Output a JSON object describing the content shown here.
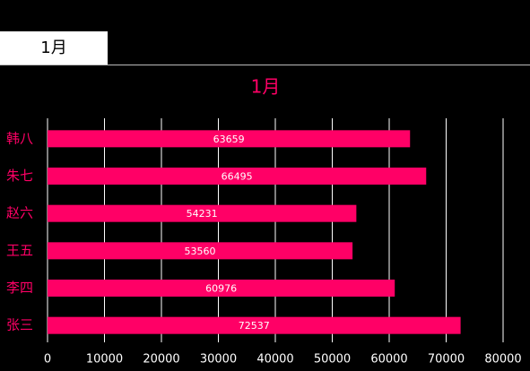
{
  "tab_label": "1月",
  "chart_data": {
    "type": "hbar",
    "title": "1月",
    "categories": [
      "韩八",
      "朱七",
      "赵六",
      "王五",
      "李四",
      "张三"
    ],
    "values": [
      63659,
      66495,
      54231,
      53560,
      60976,
      72537
    ],
    "color": "#ff0066",
    "xlim": [
      0,
      80000
    ],
    "xticks": [
      0,
      10000,
      20000,
      30000,
      40000,
      50000,
      60000,
      70000,
      80000
    ],
    "grid": true
  }
}
